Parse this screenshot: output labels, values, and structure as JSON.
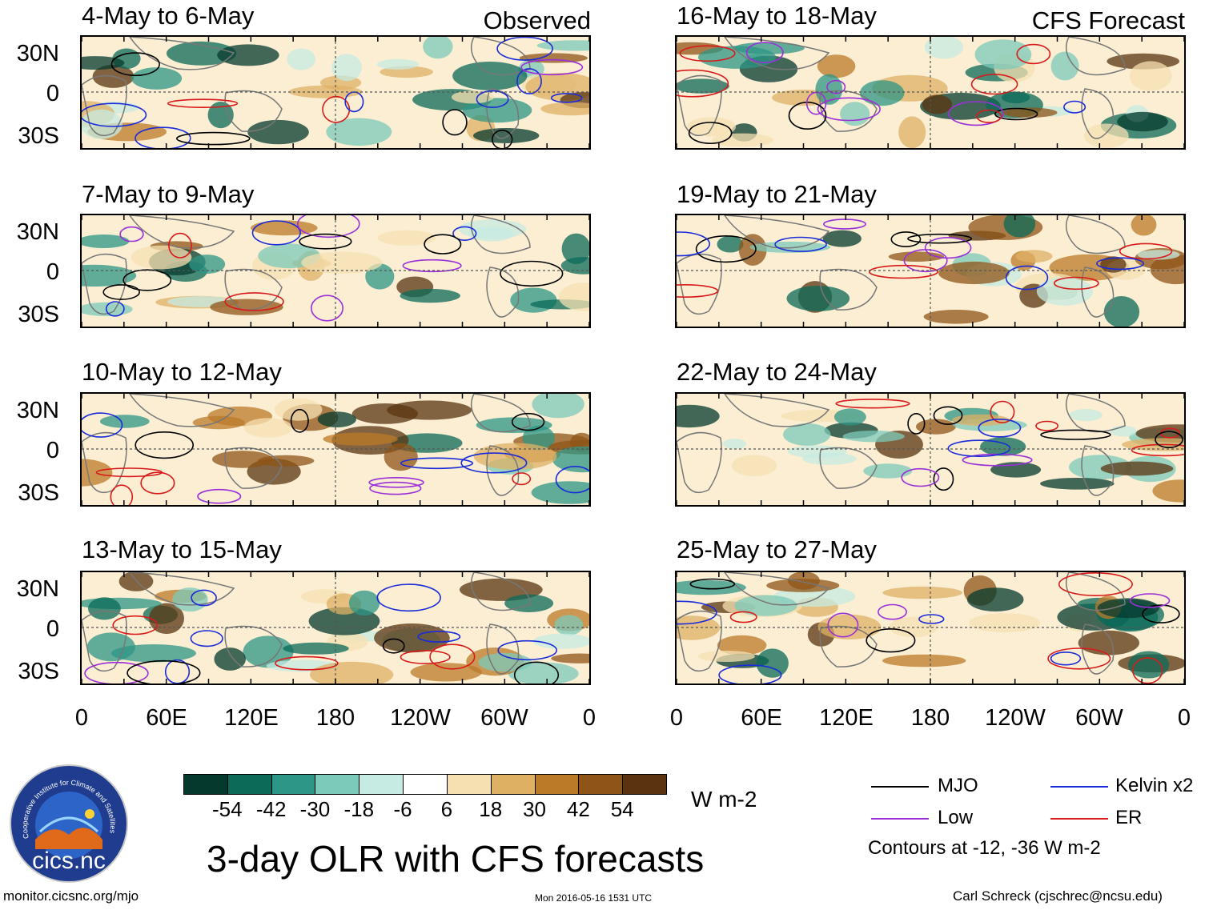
{
  "corner_labels": {
    "observed": "Observed",
    "forecast": "CFS Forecast"
  },
  "panels_left": [
    {
      "title": "4-May to 6-May"
    },
    {
      "title": "7-May to 9-May"
    },
    {
      "title": "10-May to 12-May"
    },
    {
      "title": "13-May to 15-May"
    }
  ],
  "panels_right": [
    {
      "title": "16-May to 18-May"
    },
    {
      "title": "19-May to 21-May"
    },
    {
      "title": "22-May to 24-May"
    },
    {
      "title": "25-May to 27-May"
    }
  ],
  "lat_ticks": [
    "30N",
    "0",
    "30S"
  ],
  "lon_ticks": [
    "0",
    "60E",
    "120E",
    "180",
    "120W",
    "60W",
    "0"
  ],
  "colorbar": {
    "levels": [
      "-54",
      "-42",
      "-30",
      "-18",
      "-6",
      "6",
      "18",
      "30",
      "42",
      "54"
    ],
    "colors": [
      "#06392d",
      "#0b6a58",
      "#2e9686",
      "#7ccab9",
      "#c6ebe2",
      "#ffffff",
      "#f6e0b1",
      "#ddb064",
      "#bb7a28",
      "#8f5417",
      "#5a3410"
    ],
    "units": "W m-2"
  },
  "legend": {
    "items": [
      {
        "label": "MJO",
        "color": "#000000"
      },
      {
        "label": "Kelvin x2",
        "color": "#1a2bd9"
      },
      {
        "label": "Low",
        "color": "#9b30d9"
      },
      {
        "label": "ER",
        "color": "#d91a1a"
      }
    ],
    "note": "Contours at -12, -36 W m-2"
  },
  "title": "3-day OLR with CFS forecasts",
  "logo_text": "cics.nc",
  "logo_ring_text": "Cooperative Institute for Climate and Satellites",
  "footer": {
    "left": "monitor.cicsnc.org/mjo",
    "center": "Mon 2016-05-16 1531 UTC",
    "right": "Carl Schreck (cjschrec@ncsu.edu)"
  }
}
